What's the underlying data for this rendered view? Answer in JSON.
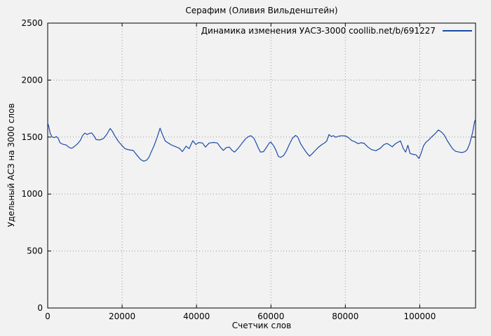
{
  "title": "Серафим (Оливия Вильденштейн)",
  "legend": {
    "label": "Динамика изменения УАСЗ-3000 coollib.net/b/691227"
  },
  "axes": {
    "ylabel": "Удельный АСЗ на 3000 слов",
    "xlabel": "Счетчик слов"
  },
  "colors": {
    "line": "#1a4aa8",
    "background": "#f2f2f2",
    "grid": "#999999",
    "axis": "#000000"
  },
  "chart_data": {
    "type": "line",
    "title": "Серафим (Оливия Вильденштейн)",
    "xlabel": "Счетчик слов",
    "ylabel": "Удельный АСЗ на 3000 слов",
    "xlim": [
      0,
      115000
    ],
    "ylim": [
      0,
      2500
    ],
    "x_ticks": [
      0,
      20000,
      40000,
      60000,
      80000,
      100000
    ],
    "y_ticks": [
      0,
      500,
      1000,
      1500,
      2000,
      2500
    ],
    "grid": true,
    "legend_position": "top-right-inside",
    "series": [
      {
        "name": "Динамика изменения УАСЗ-3000 coollib.net/b/691227",
        "color": "#1a4aa8",
        "x": [
          0,
          300,
          700,
          1200,
          1800,
          2300,
          2800,
          3300,
          4000,
          5000,
          5800,
          6500,
          7200,
          8000,
          8800,
          9400,
          10000,
          10600,
          11200,
          11800,
          12400,
          13000,
          14000,
          15000,
          15800,
          16800,
          17400,
          18000,
          19000,
          19800,
          20800,
          21800,
          23000,
          24000,
          25000,
          25800,
          26600,
          27200,
          27800,
          28600,
          29400,
          30200,
          30800,
          31600,
          32400,
          33400,
          34400,
          35400,
          36200,
          37200,
          38000,
          39000,
          39800,
          40600,
          41600,
          42400,
          43400,
          44600,
          45600,
          46400,
          47200,
          48000,
          48800,
          49600,
          50200,
          51200,
          52200,
          53200,
          54000,
          54600,
          55400,
          56000,
          56600,
          57200,
          58000,
          58800,
          59600,
          60000,
          60800,
          61400,
          62000,
          62600,
          63400,
          64200,
          65000,
          65800,
          66600,
          67200,
          68000,
          68800,
          69600,
          70400,
          71200,
          72000,
          72800,
          73600,
          74400,
          75000,
          75600,
          76200,
          76800,
          77400,
          78200,
          79200,
          80200,
          81000,
          81800,
          82600,
          83400,
          84200,
          85000,
          86000,
          87000,
          88200,
          89400,
          90400,
          91200,
          92000,
          92600,
          93400,
          94200,
          94800,
          95600,
          96200,
          96800,
          97400,
          98200,
          99000,
          99800,
          100400,
          101000,
          101600,
          102400,
          103200,
          104200,
          105000,
          105800,
          106600,
          107400,
          108200,
          108800,
          109600,
          110600,
          111400,
          112200,
          112800,
          113400,
          114200,
          114700,
          115000
        ],
        "y": [
          1625,
          1590,
          1530,
          1500,
          1495,
          1505,
          1490,
          1450,
          1438,
          1430,
          1408,
          1402,
          1418,
          1440,
          1472,
          1515,
          1535,
          1522,
          1532,
          1536,
          1512,
          1478,
          1475,
          1488,
          1520,
          1575,
          1550,
          1512,
          1462,
          1432,
          1398,
          1388,
          1382,
          1340,
          1302,
          1288,
          1298,
          1322,
          1368,
          1425,
          1495,
          1578,
          1525,
          1465,
          1448,
          1428,
          1415,
          1402,
          1372,
          1420,
          1398,
          1468,
          1435,
          1452,
          1448,
          1412,
          1448,
          1453,
          1448,
          1412,
          1383,
          1408,
          1412,
          1382,
          1368,
          1402,
          1445,
          1485,
          1505,
          1512,
          1490,
          1450,
          1405,
          1368,
          1372,
          1410,
          1450,
          1455,
          1420,
          1380,
          1330,
          1322,
          1338,
          1380,
          1440,
          1490,
          1515,
          1500,
          1440,
          1400,
          1362,
          1332,
          1358,
          1385,
          1412,
          1432,
          1448,
          1465,
          1522,
          1505,
          1512,
          1498,
          1508,
          1512,
          1508,
          1490,
          1468,
          1458,
          1442,
          1450,
          1446,
          1414,
          1390,
          1380,
          1402,
          1435,
          1444,
          1428,
          1414,
          1440,
          1456,
          1466,
          1398,
          1368,
          1428,
          1356,
          1348,
          1344,
          1312,
          1362,
          1422,
          1452,
          1475,
          1502,
          1532,
          1562,
          1545,
          1518,
          1468,
          1428,
          1398,
          1375,
          1368,
          1364,
          1372,
          1392,
          1440,
          1540,
          1630,
          1660
        ]
      }
    ]
  }
}
